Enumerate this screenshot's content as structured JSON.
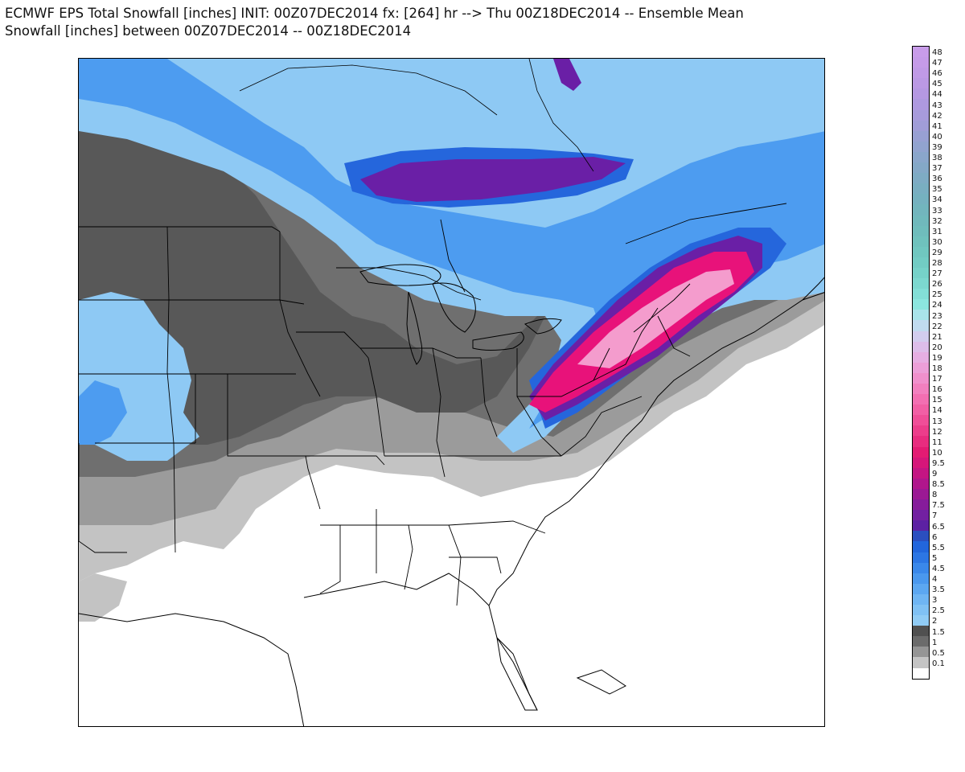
{
  "title": {
    "line1": "ECMWF EPS Total Snowfall [inches] INIT: 00Z07DEC2014 fx: [264] hr --> Thu 00Z18DEC2014 -- Ensemble Mean",
    "line2": "Snowfall [inches] between 00Z07DEC2014 -- 00Z18DEC2014"
  },
  "colors": {
    "background": "#ffffff",
    "grey_light": "#c3c3c3",
    "grey_mid": "#9b9b9b",
    "grey_dark": "#6f6f6f",
    "grey_darkest": "#585858",
    "blue_light": "#8ec9f4",
    "blue_mid": "#4d9cf0",
    "blue_dark": "#2566dc",
    "purple": "#6a1fa6",
    "magenta": "#e8127a",
    "pink_light": "#f49ccd",
    "boundary": "#000000"
  },
  "map_features": {
    "region": "Eastern North America (conterminous US east of the Rockies, southern Canada, Great Lakes, Florida, Gulf of Mexico)",
    "max_swath": "Northeast US (Pennsylvania, New York, New England) 12-21 inches",
    "secondary_max": "Central Ontario / Quebec band 6-8 inches"
  },
  "legend": [
    {
      "label": "48",
      "color": "#c89ce9"
    },
    {
      "label": "47",
      "color": "#c59be8"
    },
    {
      "label": "46",
      "color": "#c09ae6"
    },
    {
      "label": "45",
      "color": "#bb99e4"
    },
    {
      "label": "44",
      "color": "#b598e2"
    },
    {
      "label": "43",
      "color": "#ae99df"
    },
    {
      "label": "42",
      "color": "#a79bdb"
    },
    {
      "label": "41",
      "color": "#a09dd7"
    },
    {
      "label": "40",
      "color": "#98a0d3"
    },
    {
      "label": "39",
      "color": "#91a3cf"
    },
    {
      "label": "38",
      "color": "#8aa6cb"
    },
    {
      "label": "37",
      "color": "#84a8c7"
    },
    {
      "label": "36",
      "color": "#7eabc4"
    },
    {
      "label": "35",
      "color": "#79aec1"
    },
    {
      "label": "34",
      "color": "#75b1bf"
    },
    {
      "label": "33",
      "color": "#72b5bd"
    },
    {
      "label": "32",
      "color": "#70b9bc"
    },
    {
      "label": "31",
      "color": "#6fbdbc"
    },
    {
      "label": "30",
      "color": "#6fc2bd"
    },
    {
      "label": "29",
      "color": "#70c7c0"
    },
    {
      "label": "28",
      "color": "#72ccc4"
    },
    {
      "label": "27",
      "color": "#76d2c9"
    },
    {
      "label": "26",
      "color": "#7cd8cf"
    },
    {
      "label": "25",
      "color": "#83dfd7"
    },
    {
      "label": "24",
      "color": "#8ce6df"
    },
    {
      "label": "23",
      "color": "#a9e4ea"
    },
    {
      "label": "22",
      "color": "#c0dbef"
    },
    {
      "label": "21",
      "color": "#d2cdee"
    },
    {
      "label": "20",
      "color": "#ddbde9"
    },
    {
      "label": "19",
      "color": "#e6aee2"
    },
    {
      "label": "18",
      "color": "#ec9fd8"
    },
    {
      "label": "17",
      "color": "#f090cc"
    },
    {
      "label": "16",
      "color": "#f280bf"
    },
    {
      "label": "15",
      "color": "#f36fb2"
    },
    {
      "label": "14",
      "color": "#f25fa5"
    },
    {
      "label": "13",
      "color": "#f04e98"
    },
    {
      "label": "12",
      "color": "#ec3d8b"
    },
    {
      "label": "11",
      "color": "#e82c7f"
    },
    {
      "label": "10",
      "color": "#e31b73"
    },
    {
      "label": "9.5",
      "color": "#d6167a"
    },
    {
      "label": "9",
      "color": "#c41583"
    },
    {
      "label": "8.5",
      "color": "#b0168c"
    },
    {
      "label": "8",
      "color": "#9b1994"
    },
    {
      "label": "7.5",
      "color": "#861c9b"
    },
    {
      "label": "7",
      "color": "#7220a1"
    },
    {
      "label": "6.5",
      "color": "#5c21a3"
    },
    {
      "label": "6",
      "color": "#2b4fbf"
    },
    {
      "label": "5.5",
      "color": "#2266dc"
    },
    {
      "label": "5",
      "color": "#2c76e4"
    },
    {
      "label": "4.5",
      "color": "#3a88ea"
    },
    {
      "label": "4",
      "color": "#4a98ee"
    },
    {
      "label": "3.5",
      "color": "#5ca7f1"
    },
    {
      "label": "3",
      "color": "#6fb5f3"
    },
    {
      "label": "2.5",
      "color": "#80c1f4"
    },
    {
      "label": "2",
      "color": "#91ccf5"
    },
    {
      "label": "1.5",
      "color": "#505050"
    },
    {
      "label": "1",
      "color": "#6b6b6b"
    },
    {
      "label": "0.5",
      "color": "#959595"
    },
    {
      "label": "0.1",
      "color": "#c4c4c4"
    },
    {
      "label": "",
      "color": "#ffffff"
    }
  ]
}
